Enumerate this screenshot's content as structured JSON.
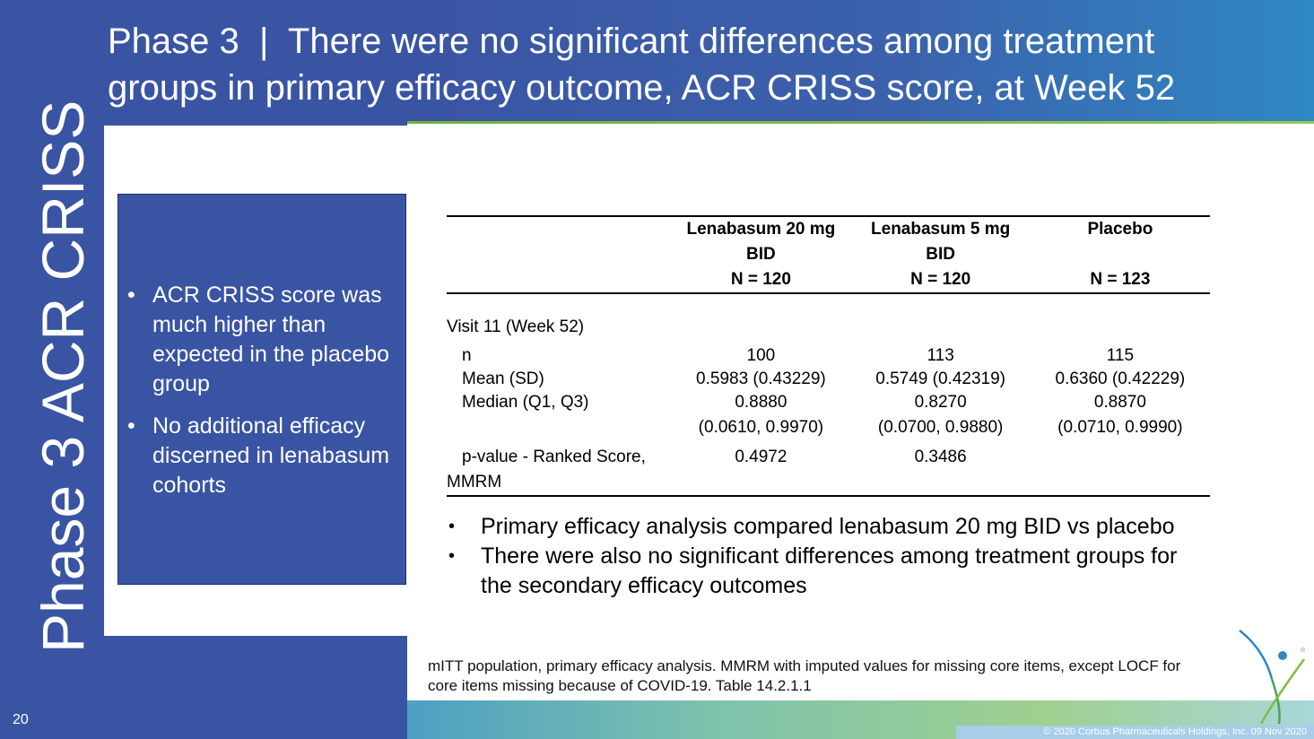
{
  "title": "Phase 3 | There were no significant differences among treatment groups in primary efficacy outcome, ACR CRISS score, at Week 52",
  "title_line1": "Phase 3  |  There were no significant differences among treatment",
  "title_line2": "groups in primary efficacy outcome, ACR CRISS score, at Week 52",
  "vertical_title": "Phase 3 ACR CRISS",
  "box_bullets": [
    "ACR CRISS score was much higher than expected in the placebo group",
    "No additional efficacy discerned in lenabasum cohorts"
  ],
  "table": {
    "headers": [
      {
        "line1": "Lenabasum 20 mg",
        "line2": "BID",
        "line3": "N = 120"
      },
      {
        "line1": "Lenabasum 5 mg",
        "line2": "BID",
        "line3": "N = 120"
      },
      {
        "line1": "Placebo",
        "line2": "",
        "line3": "N = 123"
      }
    ],
    "visit_label": "Visit 11 (Week 52)",
    "rows": [
      {
        "label": "n",
        "values": [
          "100",
          "113",
          "115"
        ]
      },
      {
        "label": "Mean (SD)",
        "values": [
          "0.5983 (0.43229)",
          "0.5749 (0.42319)",
          "0.6360 (0.42229)"
        ]
      },
      {
        "label": "Median (Q1, Q3)",
        "values": [
          "0.8880",
          "0.8270",
          "0.8870"
        ]
      },
      {
        "label": "",
        "values": [
          "(0.0610, 0.9970)",
          "(0.0700, 0.9880)",
          "(0.0710, 0.9990)"
        ]
      }
    ],
    "pvalue_label_line1": "p-value - Ranked Score,",
    "pvalue_label_line2": "MMRM",
    "pvalue_values": [
      "0.4972",
      "0.3486",
      ""
    ]
  },
  "notes": [
    "Primary efficacy analysis compared lenabasum 20 mg BID vs placebo",
    "There were also no significant differences among treatment groups for the secondary efficacy outcomes"
  ],
  "footnote": "mITT population, primary efficacy analysis. MMRM with imputed values for missing core items, except LOCF for core items missing because of COVID-19. Table 14.2.1.1",
  "page_number": "20",
  "copyright": "© 2020 Corbus Pharmaceuticals Holdings, Inc. 09 Nov 2020",
  "logo_registered": "®",
  "bullet_glyph": "•",
  "colors": {
    "left_panel": "#3a54a4",
    "title_text": "#ffffff",
    "accent_green": "#6fb03f",
    "accent_blue": "#2f88c3"
  }
}
